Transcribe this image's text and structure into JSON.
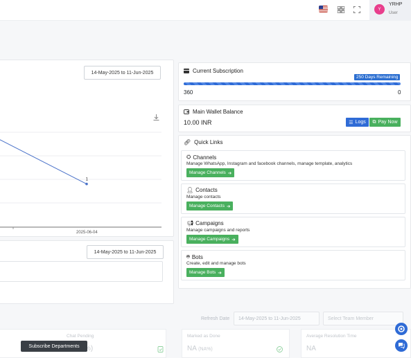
{
  "topbar": {
    "language_flag": "us-flag-icon",
    "user": {
      "avatar_initial": "Y",
      "name": "YRHP",
      "role": "User"
    }
  },
  "chart_card": {
    "date_range": "14-May-2025 to 11-Jun-2025",
    "point_label": "1",
    "x_tick_label": "2025-06-04"
  },
  "chart_data": {
    "type": "line",
    "x": [
      "2025-06-04"
    ],
    "series": [
      {
        "values": [
          1
        ]
      }
    ],
    "data_labels": [
      "1"
    ]
  },
  "bottom_card": {
    "date_range": "14-May-2025 to 11-Jun-2025"
  },
  "subscription": {
    "title": "Current Subscription",
    "days_remaining": "250 Days Remaining",
    "total": "360",
    "used": "0",
    "progress_fraction": 1.0
  },
  "wallet": {
    "title": "Main Wallet Balance",
    "amount": "10.00 INR",
    "logs_label": "Logs",
    "pay_label": "Pay Now"
  },
  "quick_links": {
    "title": "Quick Links",
    "items": [
      {
        "title": "Channels",
        "desc": "Manage WhatsApp, Instagram and facebook channels, manage template, analytics",
        "button": "Manage Channels"
      },
      {
        "title": "Contacts",
        "desc": "Manage contacts",
        "button": "Manage Contacts"
      },
      {
        "title": "Campaigns",
        "desc": "Manage campaigns and reports",
        "button": "Manage Campaigns"
      },
      {
        "title": "Bots",
        "desc": "Create, edit and manage bots",
        "button": "Manage Bots"
      }
    ]
  },
  "filters": {
    "refresh_label": "Refresh Date",
    "date_range": "14-May-2025 to 11-Jun-2025",
    "team_placeholder": "Select Team Member"
  },
  "stats": [
    {
      "label": "Chat Pending",
      "value": "%)",
      "sub": ""
    },
    {
      "label": "Marked as Done",
      "value": "NA",
      "sub": "(NA%)"
    },
    {
      "label": "Average Resolution Time",
      "value": "NA",
      "sub": ""
    }
  ],
  "tooltip": "Subscribe Departments"
}
